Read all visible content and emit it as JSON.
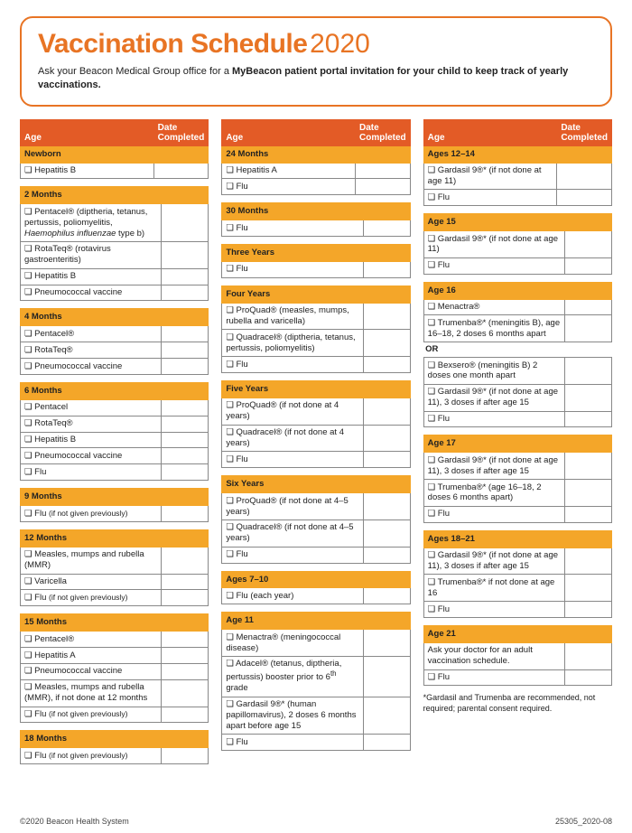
{
  "header": {
    "title_bold": "Vaccination Schedule",
    "title_year": "2020",
    "subtitle_pre": "Ask your Beacon Medical Group office for a ",
    "subtitle_bold": "MyBeacon patient portal invitation for your child to keep track of yearly vaccinations.",
    "subtitle_post": ""
  },
  "table_headers": {
    "age": "Age",
    "date": "Date Completed"
  },
  "col1": [
    {
      "age": "Newborn",
      "items": [
        "❏ Hepatitis B"
      ]
    },
    {
      "age": "2 Months",
      "items": [
        "❏ Pentacel® (diptheria, tetanus, pertussis, poliomyelitis, <i>Haemophilus influenzae</i> type b)",
        "❏ RotaTeq® (rotavirus gastroenteritis)",
        "❏ Hepatitis B",
        "❏ Pneumococcal vaccine"
      ]
    },
    {
      "age": "4 Months",
      "items": [
        "❏ Pentacel®",
        "❏ RotaTeq®",
        "❏ Pneumococcal vaccine"
      ]
    },
    {
      "age": "6 Months",
      "items": [
        "❏ Pentacel",
        "❏ RotaTeq®",
        "❏ Hepatitis B",
        "❏ Pneumococcal vaccine",
        "❏ Flu"
      ]
    },
    {
      "age": "9 Months",
      "items": [
        "❏ Flu <span class='small-note'>(if not given previously)</span>"
      ]
    },
    {
      "age": "12 Months",
      "items": [
        "❏ Measles, mumps and rubella (MMR)",
        "❏ Varicella",
        "❏ Flu <span class='small-note'>(if not given previously)</span>"
      ]
    },
    {
      "age": "15 Months",
      "items": [
        "❏ Pentacel®",
        "❏ Hepatitis A",
        "❏ Pneumococcal vaccine",
        "❏ Measles, mumps and rubella (MMR), if not done at 12 months",
        "❏ Flu <span class='small-note'>(if not given previously)</span>"
      ]
    },
    {
      "age": "18 Months",
      "items": [
        "❏ Flu <span class='small-note'>(if not given previously)</span>"
      ]
    }
  ],
  "col2": [
    {
      "age": "24 Months",
      "items": [
        "❏ Hepatitis A",
        "❏ Flu"
      ]
    },
    {
      "age": "30 Months",
      "items": [
        "❏ Flu"
      ]
    },
    {
      "age": "Three Years",
      "items": [
        "❏ Flu"
      ]
    },
    {
      "age": "Four Years",
      "items": [
        "❏ ProQuad® (measles, mumps, rubella and varicella)",
        "❏ Quadracel® (diptheria, tetanus, pertussis, poliomyelitis)",
        "❏ Flu"
      ]
    },
    {
      "age": "Five Years",
      "items": [
        "❏ ProQuad® (if not done at 4 years)",
        "❏ Quadracel® (if not done at 4 years)",
        "❏ Flu"
      ]
    },
    {
      "age": "Six Years",
      "items": [
        "❏ ProQuad® (if not done at 4–5 years)",
        "❏ Quadracel® (if not done at 4–5 years)",
        "❏ Flu"
      ]
    },
    {
      "age": "Ages 7–10",
      "items": [
        "❏ Flu (each year)"
      ]
    },
    {
      "age": "Age 11",
      "items": [
        "❏ Menactra® (meningococcal disease)",
        "❏ Adacel® (tetanus, diptheria, pertussis) booster prior to 6<sup>th</sup> grade",
        "❏ Gardasil 9®* (human papillomavirus), 2 doses 6 months apart before age 15",
        "❏ Flu"
      ]
    }
  ],
  "col3": [
    {
      "age": "Ages 12–14",
      "items": [
        "❏ Gardasil 9®* (if not done at age 11)",
        "❏ Flu"
      ]
    },
    {
      "age": "Age 15",
      "items": [
        "❏ Gardasil 9®* (if not done at age 11)",
        "❏ Flu"
      ]
    },
    {
      "age": "Age 16",
      "or_after": 2,
      "items": [
        "❏ Menactra®",
        "❏ Trumenba®* (meningitis B), age 16–18, 2 doses 6 months apart",
        "OR",
        "❏ Bexsero® (meningitis B) 2 doses one month apart",
        "❏ Gardasil 9®* (if not done at age 11), 3 doses if after age 15",
        "❏ Flu"
      ]
    },
    {
      "age": "Age 17",
      "items": [
        "❏ Gardasil 9®* (if not done at age 11), 3 doses if after age 15",
        "❏ Trumenba®* (age 16–18, 2 doses 6 months apart)",
        "❏ Flu"
      ]
    },
    {
      "age": "Ages 18–21",
      "items": [
        "❏ Gardasil 9®* (if not done at age 11), 3 doses if after age 15",
        "❏ Trumenba®* if not done at age 16",
        "❏ Flu"
      ]
    },
    {
      "age": "Age 21",
      "items": [
        "Ask your doctor for an adult vaccination schedule.",
        "❏ Flu"
      ]
    }
  ],
  "footnote": "*Gardasil and Trumenba are recommended, not required; parental consent required.",
  "footer": {
    "left": "©2020 Beacon Health System",
    "right": "25305_2020-08"
  },
  "colors": {
    "accent": "#e87424",
    "header_row": "#e35b26",
    "age_row": "#f4a629"
  }
}
